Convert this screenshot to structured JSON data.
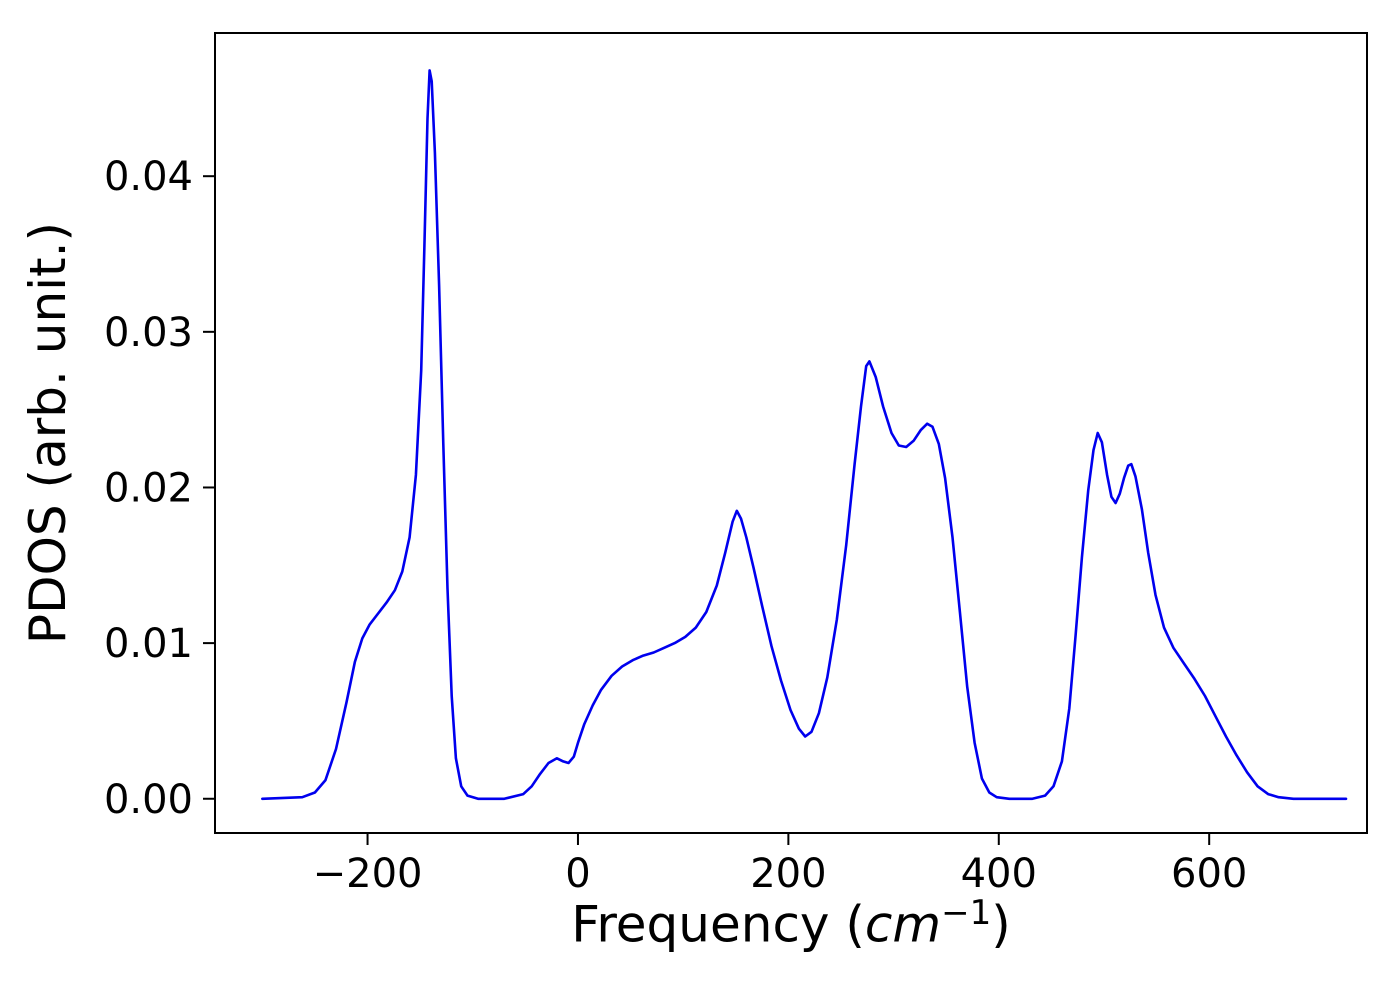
{
  "chart_data": {
    "type": "line",
    "title": "",
    "ylabel": "PDOS (arb. unit.)",
    "xlabel_parts": {
      "prefix": "Frequency (",
      "italic": "cm",
      "superscript": "−1",
      "suffix": ")"
    },
    "xlim": [
      -345,
      750
    ],
    "ylim": [
      -0.0022,
      0.0492
    ],
    "grid": false,
    "legend": null,
    "x_ticks": {
      "values": [
        -200,
        0,
        200,
        400,
        600
      ],
      "labels": [
        "−200",
        "0",
        "200",
        "400",
        "600"
      ]
    },
    "y_ticks": {
      "values": [
        0.0,
        0.01,
        0.02,
        0.03,
        0.04
      ],
      "labels": [
        "0.00",
        "0.01",
        "0.02",
        "0.03",
        "0.04"
      ]
    },
    "series": [
      {
        "name": "PDOS",
        "color": "#0000EE",
        "x": [
          -300,
          -262,
          -250,
          -240,
          -230,
          -220,
          -212,
          -205,
          -198,
          -190,
          -182,
          -174,
          -167,
          -160,
          -154,
          -149,
          -146,
          -143,
          -141,
          -139,
          -136,
          -132,
          -128,
          -124,
          -120,
          -116,
          -111,
          -105,
          -95,
          -70,
          -52,
          -44,
          -36,
          -28,
          -20,
          -14,
          -9,
          -4,
          0,
          6,
          14,
          22,
          32,
          42,
          52,
          62,
          72,
          82,
          92,
          102,
          112,
          122,
          132,
          140,
          147,
          151,
          155,
          160,
          167,
          175,
          184,
          193,
          202,
          210,
          216,
          222,
          229,
          237,
          246,
          255,
          263,
          269,
          274,
          277,
          283,
          290,
          298,
          305,
          312,
          319,
          326,
          332,
          337,
          343,
          349,
          356,
          363,
          370,
          377,
          384,
          391,
          398,
          410,
          432,
          444,
          452,
          460,
          467,
          473,
          479,
          485,
          490,
          494,
          498,
          503,
          507,
          511,
          515,
          519,
          523,
          526,
          530,
          536,
          542,
          549,
          557,
          566,
          576,
          586,
          596,
          606,
          616,
          626,
          636,
          646,
          656,
          666,
          680,
          730
        ],
        "y": [
          0,
          0.0001,
          0.0004,
          0.0012,
          0.0032,
          0.0062,
          0.0088,
          0.0103,
          0.0112,
          0.0119,
          0.0126,
          0.0134,
          0.0146,
          0.0168,
          0.0208,
          0.0275,
          0.0355,
          0.0437,
          0.0468,
          0.0461,
          0.0415,
          0.033,
          0.0228,
          0.0135,
          0.0066,
          0.0026,
          0.0008,
          0.0002,
          0,
          0,
          0.0003,
          0.0008,
          0.0016,
          0.0023,
          0.0026,
          0.0024,
          0.0023,
          0.0027,
          0.0036,
          0.0048,
          0.006,
          0.007,
          0.0079,
          0.0085,
          0.0089,
          0.0092,
          0.0094,
          0.0097,
          0.01,
          0.0104,
          0.011,
          0.012,
          0.0137,
          0.0158,
          0.0178,
          0.0185,
          0.018,
          0.0168,
          0.0148,
          0.0124,
          0.0098,
          0.0076,
          0.0057,
          0.0045,
          0.004,
          0.0043,
          0.0055,
          0.0078,
          0.0115,
          0.0163,
          0.0215,
          0.0252,
          0.0278,
          0.0281,
          0.0271,
          0.0252,
          0.0235,
          0.0227,
          0.0226,
          0.023,
          0.0237,
          0.0241,
          0.0239,
          0.0228,
          0.0206,
          0.0168,
          0.012,
          0.0072,
          0.0036,
          0.0013,
          0.0004,
          0.0001,
          0,
          0,
          0.0002,
          0.0008,
          0.0024,
          0.0058,
          0.0105,
          0.0155,
          0.0198,
          0.0224,
          0.0235,
          0.0229,
          0.0208,
          0.0194,
          0.019,
          0.0196,
          0.0206,
          0.0214,
          0.0215,
          0.0207,
          0.0186,
          0.0158,
          0.0131,
          0.011,
          0.0097,
          0.0087,
          0.0077,
          0.0066,
          0.0053,
          0.004,
          0.0028,
          0.0017,
          0.0008,
          0.0003,
          0.0001,
          0,
          0
        ]
      }
    ]
  }
}
